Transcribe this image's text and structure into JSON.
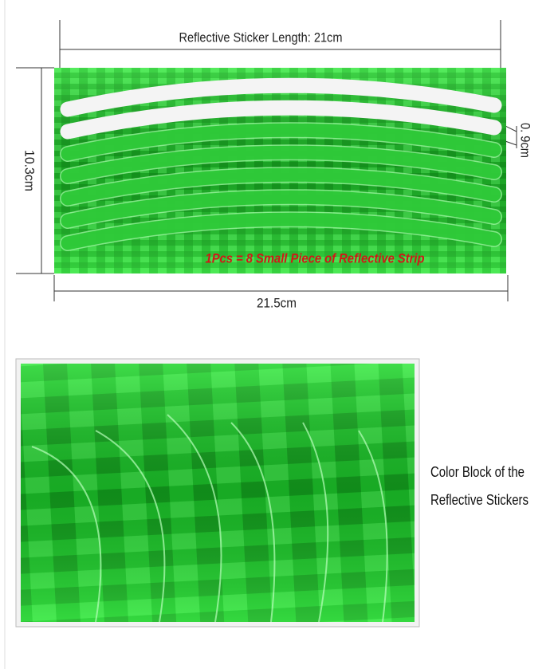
{
  "top_panel": {
    "length_label": "Reflective Sticker Length: 21cm",
    "width_label": "0. 9cm",
    "height_label": "10.3cm",
    "bottom_label": "21.5cm",
    "note": "1Pcs = 8 Small Piece of Reflective Strip"
  },
  "bottom_panel": {
    "caption_lines": [
      "Color Block of the",
      "Reflective Stickers"
    ]
  }
}
